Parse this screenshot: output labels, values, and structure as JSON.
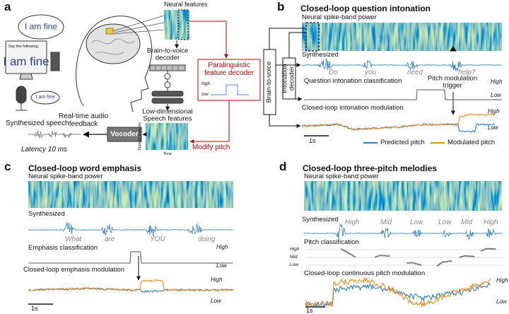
{
  "panel_a": {
    "label": "a",
    "neural_features": "Neural features",
    "speech_bubble": "I am fine",
    "screen_prompt": "Say the following:",
    "screen_text": "I am fine",
    "mic_bubble": "I am fine",
    "feedback": "Real-time audio feedback",
    "decoder": "Brain-to-voice decoder",
    "paralinguistic_decoder": "Paralinguistic feature decoder",
    "decoder_plot": {
      "high": "high",
      "low": "low"
    },
    "speech_features": "Low-dimensional Speech features",
    "heatmap_y_label": "Speech features",
    "heatmap_x_label": "Time",
    "modify_pitch": "Modify pitch",
    "vocoder": "Vocoder",
    "synthesized_speech": "Synthesized speech",
    "latency": "Latency 10 ms"
  },
  "panel_b": {
    "label": "b",
    "title": "Closed-loop question intonation",
    "neural_label": "Neural spike-band power",
    "brain_to_voice": "Brain-to-voice",
    "intonation_decoder": "Intonation decoder",
    "synthesized": "Synthesized",
    "words": [
      "Do",
      "you",
      "need",
      "help?"
    ],
    "classification": "Question intonation classification",
    "classification_high": "High",
    "classification_low": "Low",
    "trigger": "Pitch modulation trigger",
    "modulation": "Closed-loop intonation modulation",
    "modulation_high": "High",
    "modulation_low": "Low",
    "scale": "1s",
    "legend": [
      "Predicted pitch",
      "Modulated pitch"
    ]
  },
  "panel_c": {
    "label": "c",
    "title": "Closed-loop word emphasis",
    "neural_label": "Neural spike-band power",
    "synthesized": "Synthesized",
    "words": [
      "What",
      "are",
      "YOU",
      "doing"
    ],
    "classification": "Emphasis classification",
    "classification_high": "High",
    "classification_low": "Low",
    "modulation": "Closed-loop emphasis modulation",
    "modulation_high": "High",
    "modulation_low": "Low",
    "scale": "1s"
  },
  "panel_d": {
    "label": "d",
    "title": "Closed-loop three-pitch melodies",
    "neural_label": "Neural spike-band power",
    "synthesized": "Synthesized",
    "words": [
      "High",
      "Mid",
      "Low",
      "Low",
      "Mid",
      "High"
    ],
    "classification": "Pitch classification",
    "classification_levels": [
      "High",
      "Mid",
      "Low"
    ],
    "modulation": "Closed-loop continuous pitch modulation",
    "modulation_high": "High",
    "modulation_low": "Low",
    "scale": "1s"
  }
}
